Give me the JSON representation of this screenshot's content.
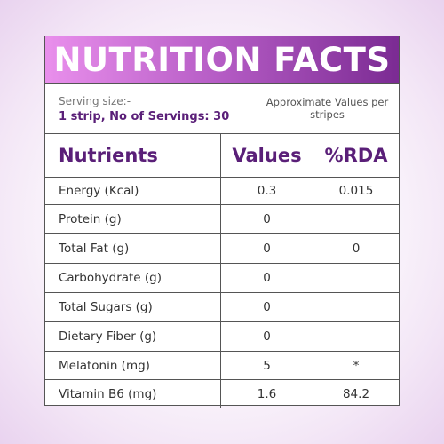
{
  "header": {
    "title": "NUTRITION FACTS"
  },
  "serving": {
    "label": "Serving size:-",
    "detail": "1 strip, No of Servings: 30",
    "note": "Approximate Values per stripes"
  },
  "table": {
    "columns": [
      "Nutrients",
      "Values",
      "%RDA"
    ],
    "rows": [
      {
        "nutrient": "Energy (Kcal)",
        "value": "0.3",
        "rda": "0.015"
      },
      {
        "nutrient": "Protein (g)",
        "value": "0"
      },
      {
        "nutrient": "Total Fat (g)",
        "value": "0",
        "rda": "0"
      },
      {
        "nutrient": "Carbohydrate (g)",
        "value": "0"
      },
      {
        "nutrient": "Total Sugars (g)",
        "value": "0"
      },
      {
        "nutrient": "Dietary Fiber (g)",
        "value": "0"
      },
      {
        "nutrient": "Melatonin (mg)",
        "value": "5",
        "rda": "*"
      },
      {
        "nutrient": "Vitamin B6 (mg)",
        "value": "1.6",
        "rda": "84.2"
      }
    ]
  }
}
